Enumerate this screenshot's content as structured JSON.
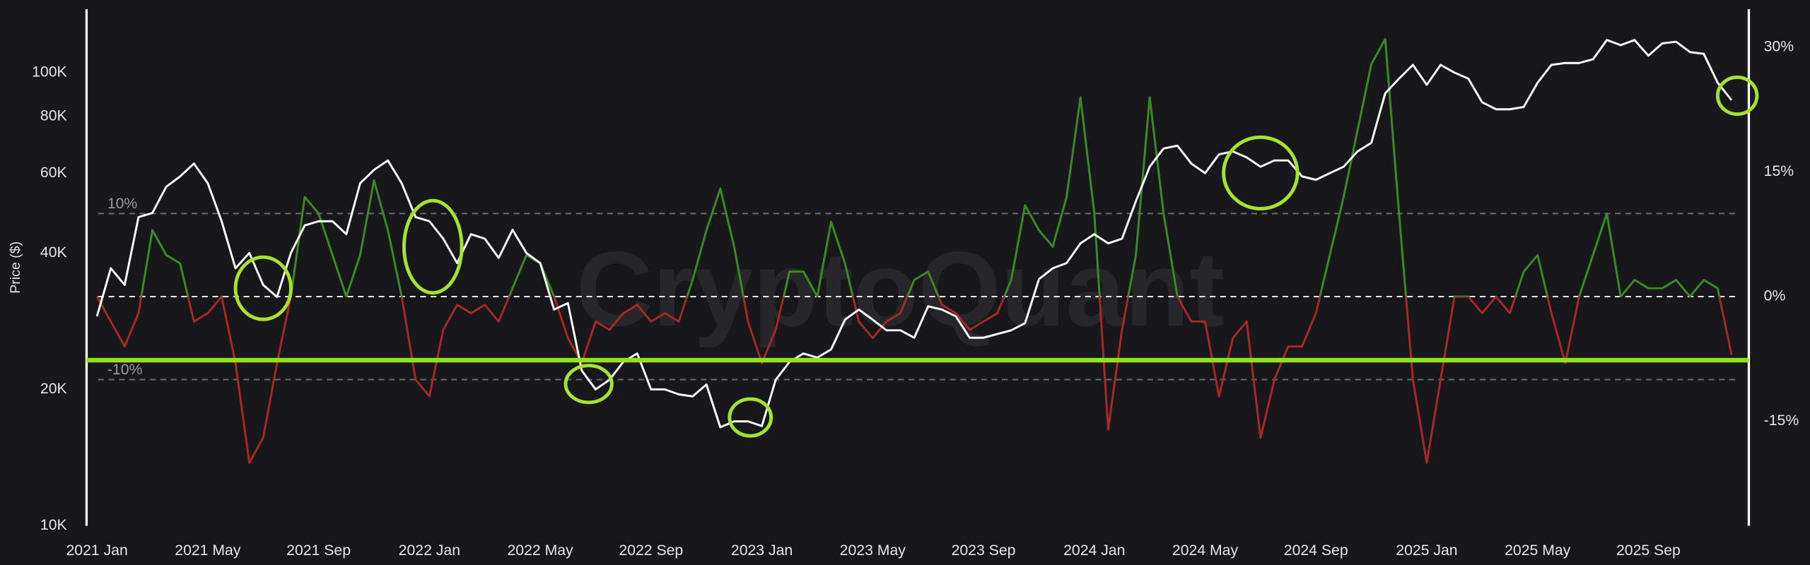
{
  "chart_data": {
    "type": "line",
    "watermark": "CryptoQuant",
    "y_label": "Price ($)",
    "ylog": true,
    "xlim": [
      -0.375,
      59.625
    ],
    "xticks": [
      {
        "value": 0,
        "label": "2021 Jan"
      },
      {
        "value": 4,
        "label": "2021 May"
      },
      {
        "value": 8,
        "label": "2021 Sep"
      },
      {
        "value": 12,
        "label": "2022 Jan"
      },
      {
        "value": 16,
        "label": "2022 May"
      },
      {
        "value": 20,
        "label": "2022 Sep"
      },
      {
        "value": 24,
        "label": "2023 Jan"
      },
      {
        "value": 28,
        "label": "2023 May"
      },
      {
        "value": 32,
        "label": "2023 Sep"
      },
      {
        "value": 36,
        "label": "2024 Jan"
      },
      {
        "value": 40,
        "label": "2024 May"
      },
      {
        "value": 44,
        "label": "2024 Sep"
      },
      {
        "value": 48,
        "label": "2025 Jan"
      },
      {
        "value": 52,
        "label": "2025 May"
      },
      {
        "value": 56,
        "label": "2025 Sep"
      }
    ],
    "ylim": [
      10000,
      138000
    ],
    "yticks": [
      {
        "value": 10000,
        "label": "10K"
      },
      {
        "value": 20000,
        "label": "20K"
      },
      {
        "value": 40000,
        "label": "40K"
      },
      {
        "value": 60000,
        "label": "60K"
      },
      {
        "value": 80000,
        "label": "80K"
      },
      {
        "value": 100000,
        "label": "100K"
      }
    ],
    "y2lim": [
      -27.6,
      34.6
    ],
    "y2ticks": [
      {
        "value": -15,
        "label": "-15%"
      },
      {
        "value": 0,
        "label": "0%"
      },
      {
        "value": 15,
        "label": "15%"
      },
      {
        "value": 30,
        "label": "30%"
      }
    ],
    "ref_lines": [
      {
        "value": 10,
        "label": "10%",
        "color": "#6b6b70"
      },
      {
        "value": 0,
        "color": "#ffffff"
      },
      {
        "value": -10,
        "label": "-10%",
        "color": "#6b6b70"
      }
    ],
    "highlight_line": {
      "value": 23200,
      "color": "#8ee31c"
    },
    "x": [
      0,
      0.5,
      1,
      1.5,
      2,
      2.5,
      3,
      3.5,
      4,
      4.5,
      5,
      5.5,
      6,
      6.5,
      7,
      7.5,
      8,
      8.5,
      9,
      9.5,
      10,
      10.5,
      11,
      11.5,
      12,
      12.5,
      13,
      13.5,
      14,
      14.5,
      15,
      15.5,
      16,
      16.5,
      17,
      17.5,
      18,
      18.5,
      19,
      19.5,
      20,
      20.5,
      21,
      21.5,
      22,
      22.5,
      23,
      23.5,
      24,
      24.5,
      25,
      25.5,
      26,
      26.5,
      27,
      27.5,
      28,
      28.5,
      29,
      29.5,
      30,
      30.5,
      31,
      31.5,
      32,
      32.5,
      33,
      33.5,
      34,
      34.5,
      35,
      35.5,
      36,
      36.5,
      37,
      37.5,
      38,
      38.5,
      39,
      39.5,
      40,
      40.5,
      41,
      41.5,
      42,
      42.5,
      43,
      43.5,
      44,
      44.5,
      45,
      45.5,
      46,
      46.5,
      47,
      47.5,
      48,
      48.5,
      49,
      49.5,
      50,
      50.5,
      51,
      51.5,
      52,
      52.5,
      53,
      53.5,
      54,
      54.5,
      55,
      55.5,
      56,
      56.5,
      57,
      57.5,
      58,
      58.5,
      59
    ],
    "series": [
      {
        "color": "#ffffff",
        "values": [
          29000,
          37000,
          34000,
          48000,
          49000,
          56000,
          59000,
          63000,
          57000,
          47000,
          37000,
          40000,
          34000,
          32000,
          40000,
          46000,
          47000,
          47000,
          44000,
          57000,
          61000,
          64000,
          57000,
          48000,
          47000,
          43000,
          38000,
          44000,
          43000,
          39000,
          45000,
          40000,
          38000,
          30000,
          31000,
          22000,
          20000,
          21000,
          23000,
          24000,
          20000,
          20000,
          19500,
          19300,
          20500,
          16500,
          17000,
          17000,
          16600,
          21000,
          23000,
          24000,
          23500,
          24500,
          28500,
          30000,
          28500,
          27000,
          27000,
          26000,
          30500,
          30000,
          29000,
          26000,
          26000,
          26500,
          27000,
          28000,
          35000,
          37000,
          38000,
          42000,
          44000,
          42000,
          43000,
          52000,
          62000,
          68000,
          69000,
          63000,
          60000,
          66000,
          67000,
          65000,
          62000,
          64000,
          64000,
          59000,
          58000,
          60000,
          62000,
          67000,
          70000,
          90000,
          97000,
          104000,
          94000,
          104000,
          100000,
          97000,
          86000,
          83000,
          83000,
          84000,
          95000,
          104000,
          105000,
          105000,
          107000,
          118000,
          115000,
          118000,
          109000,
          116000,
          117000,
          111000,
          110000,
          95000,
          87000
        ]
      },
      {
        "axis": "y2",
        "color_positive": "#3c8a23",
        "color_negative": "#a82828",
        "values": [
          0,
          -3,
          -6,
          -2,
          8,
          5,
          4,
          -3,
          -2,
          0,
          -8,
          -20,
          -17,
          -8,
          0,
          12,
          10,
          5,
          0,
          5,
          14,
          8,
          0,
          -10,
          -12,
          -4,
          -1,
          -2,
          -1,
          -3,
          1,
          5,
          4,
          0,
          -5,
          -8,
          -3,
          -4,
          -2,
          -1,
          -3,
          -2,
          -3,
          2,
          8,
          13,
          6,
          -3,
          -8,
          -4,
          3,
          3,
          0,
          9,
          4,
          -3,
          -5,
          -3,
          -2,
          2,
          3,
          -1,
          -2,
          -4,
          -3,
          -2,
          2,
          11,
          8,
          6,
          12,
          24,
          10,
          -16,
          -4,
          5,
          24,
          10,
          0,
          -3,
          -3,
          -12,
          -5,
          -3,
          -17,
          -10,
          -6,
          -6,
          -2,
          5,
          12,
          20,
          28,
          31,
          10,
          -10,
          -20,
          -10,
          0,
          0,
          -2,
          0,
          -2,
          3,
          5,
          -2,
          -8,
          0,
          5,
          10,
          0,
          2,
          1,
          1,
          2,
          0,
          2,
          1,
          -7
        ]
      }
    ]
  }
}
